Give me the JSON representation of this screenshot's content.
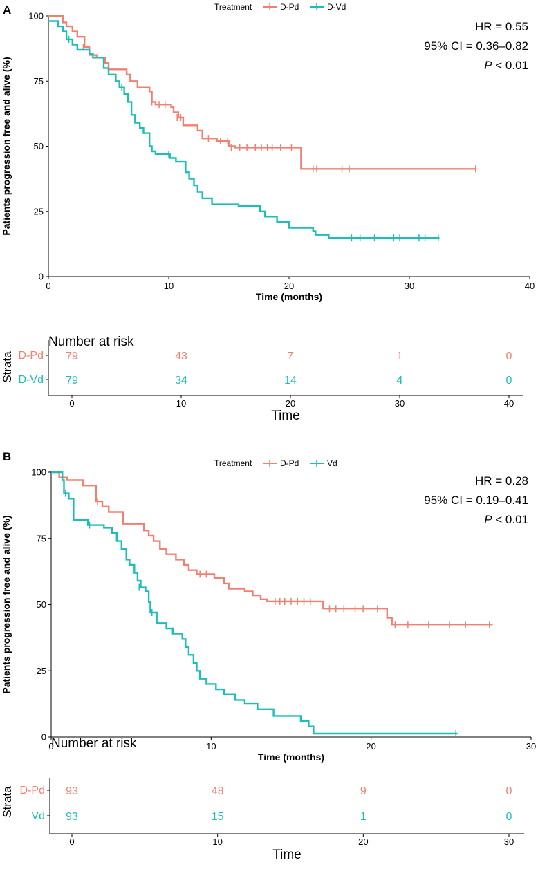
{
  "colors": {
    "dpd": "#f08070",
    "comparator": "#1ebdb8"
  },
  "chart_data": [
    {
      "type": "line",
      "subtype": "kaplan-meier",
      "panel_label": "A",
      "legend": {
        "title": "Treatment",
        "entries": [
          "D-Pd",
          "D-Vd"
        ],
        "placement": "top-center"
      },
      "xlabel": "Time (months)",
      "ylabel": "Patients progression free and alive (%)",
      "xlim": [
        0,
        40
      ],
      "ylim": [
        0,
        100
      ],
      "xticks": [
        "0",
        "10",
        "20",
        "30",
        "40"
      ],
      "yticks": [
        "0",
        "25",
        "50",
        "75",
        "100"
      ],
      "annotations": {
        "hr": "HR = 0.55",
        "ci": "95% CI = 0.36–0.82",
        "p_italic": "P",
        "p_rest": " < 0.01"
      },
      "series": [
        {
          "name": "D-Pd",
          "color": "#f08070",
          "steps": [
            [
              0,
              100
            ],
            [
              1.2,
              97.5
            ],
            [
              1.5,
              96
            ],
            [
              2,
              94
            ],
            [
              2.4,
              92
            ],
            [
              3,
              88
            ],
            [
              3.4,
              85
            ],
            [
              4,
              84
            ],
            [
              4.7,
              82
            ],
            [
              5,
              79.5
            ],
            [
              6.5,
              77.5
            ],
            [
              6.8,
              75
            ],
            [
              7.4,
              72.5
            ],
            [
              8.4,
              71
            ],
            [
              8.6,
              67
            ],
            [
              8.9,
              66
            ],
            [
              10.2,
              65
            ],
            [
              10.4,
              63
            ],
            [
              10.8,
              61
            ],
            [
              11.2,
              58
            ],
            [
              12.4,
              56
            ],
            [
              12.8,
              53
            ],
            [
              14,
              52
            ],
            [
              15,
              50
            ],
            [
              15.5,
              49.5
            ],
            [
              21,
              49.5
            ],
            [
              21,
              41.3
            ],
            [
              35.6,
              41.3
            ]
          ],
          "censors": [
            [
              2.9,
              88
            ],
            [
              8.6,
              67
            ],
            [
              9.2,
              66
            ],
            [
              9.7,
              66
            ],
            [
              10.7,
              61
            ],
            [
              11,
              61
            ],
            [
              13.3,
              53
            ],
            [
              14.3,
              52
            ],
            [
              14.9,
              52
            ],
            [
              15.2,
              49.5
            ],
            [
              15.9,
              49.5
            ],
            [
              16.5,
              49.5
            ],
            [
              17.2,
              49.5
            ],
            [
              17.7,
              49.5
            ],
            [
              18.2,
              49.5
            ],
            [
              18.6,
              49.5
            ],
            [
              19.3,
              49.5
            ],
            [
              20.2,
              49.5
            ],
            [
              22,
              41.3
            ],
            [
              22.3,
              41.3
            ],
            [
              24.4,
              41.3
            ],
            [
              25,
              41.3
            ],
            [
              35.5,
              41.3
            ]
          ]
        },
        {
          "name": "D-Vd",
          "color": "#1ebdb8",
          "steps": [
            [
              0,
              98
            ],
            [
              0.8,
              96
            ],
            [
              1.2,
              94
            ],
            [
              1.5,
              91
            ],
            [
              2,
              89
            ],
            [
              2.4,
              87
            ],
            [
              3.4,
              85.5
            ],
            [
              3.7,
              84
            ],
            [
              4.6,
              80
            ],
            [
              5,
              77.5
            ],
            [
              5.6,
              75
            ],
            [
              5.9,
              72.5
            ],
            [
              6.3,
              70
            ],
            [
              6.6,
              67
            ],
            [
              6.9,
              62
            ],
            [
              7.2,
              59
            ],
            [
              7.6,
              57
            ],
            [
              7.9,
              55
            ],
            [
              8.4,
              50
            ],
            [
              8.6,
              48
            ],
            [
              8.9,
              47
            ],
            [
              10.1,
              45.5
            ],
            [
              10.6,
              44
            ],
            [
              11.4,
              40
            ],
            [
              11.7,
              37.5
            ],
            [
              12.1,
              35
            ],
            [
              12.4,
              32.5
            ],
            [
              12.8,
              30
            ],
            [
              13.6,
              27.7
            ],
            [
              15.8,
              27
            ],
            [
              17.6,
              25
            ],
            [
              18,
              23
            ],
            [
              19,
              21
            ],
            [
              20,
              18.7
            ],
            [
              22,
              17.4
            ],
            [
              22.2,
              16
            ],
            [
              23.3,
              14.8
            ],
            [
              32.5,
              14.8
            ]
          ],
          "censors": [
            [
              1.7,
              91
            ],
            [
              6.1,
              72.5
            ],
            [
              10,
              47
            ],
            [
              25.2,
              14.8
            ],
            [
              25.9,
              14.8
            ],
            [
              27.1,
              14.8
            ],
            [
              28.7,
              14.8
            ],
            [
              29.2,
              14.8
            ],
            [
              30.8,
              14.8
            ],
            [
              31.3,
              14.8
            ],
            [
              32.4,
              14.8
            ]
          ]
        }
      ],
      "risk_table": {
        "title": "Number at risk",
        "strata_label": "Strata",
        "x_label": "Time",
        "xlim": [
          0,
          40
        ],
        "xticks": [
          "0",
          "10",
          "20",
          "30",
          "40"
        ],
        "rows": [
          {
            "label": "D-Pd",
            "values": [
              "79",
              "43",
              "7",
              "1",
              "0"
            ]
          },
          {
            "label": "D-Vd",
            "values": [
              "79",
              "34",
              "14",
              "4",
              "0"
            ]
          }
        ]
      }
    },
    {
      "type": "line",
      "subtype": "kaplan-meier",
      "panel_label": "B",
      "legend": {
        "title": "Treatment",
        "entries": [
          "D-Pd",
          "Vd"
        ],
        "placement": "top-center"
      },
      "xlabel": "Time (months)",
      "ylabel": "Patients progression free and alive (%)",
      "xlim": [
        0,
        30
      ],
      "ylim": [
        0,
        100
      ],
      "xticks": [
        "0",
        "10",
        "20",
        "30"
      ],
      "yticks": [
        "0",
        "25",
        "50",
        "75",
        "100"
      ],
      "annotations": {
        "hr": "HR = 0.28",
        "ci": "95% CI = 0.19–0.41",
        "p_italic": "P",
        "p_rest": " < 0.01"
      },
      "series": [
        {
          "name": "D-Pd",
          "color": "#f08070",
          "steps": [
            [
              0,
              100
            ],
            [
              0.5,
              98
            ],
            [
              1,
              97
            ],
            [
              2,
              95
            ],
            [
              2.8,
              89
            ],
            [
              3.2,
              87
            ],
            [
              3.6,
              85
            ],
            [
              4.5,
              80.5
            ],
            [
              5.8,
              78
            ],
            [
              6.1,
              76
            ],
            [
              6.4,
              74
            ],
            [
              6.8,
              71
            ],
            [
              7.2,
              69
            ],
            [
              7.8,
              67
            ],
            [
              8.3,
              65
            ],
            [
              8.6,
              63
            ],
            [
              9.1,
              61.5
            ],
            [
              10.2,
              60
            ],
            [
              10.8,
              58
            ],
            [
              11.1,
              56
            ],
            [
              12.1,
              55
            ],
            [
              12.6,
              53.5
            ],
            [
              13.1,
              52
            ],
            [
              13.5,
              51.2
            ],
            [
              16.9,
              51.2
            ],
            [
              17,
              48.5
            ],
            [
              21,
              48.5
            ],
            [
              21,
              45
            ],
            [
              21.3,
              42.5
            ],
            [
              27.6,
              42.5
            ]
          ],
          "censors": [
            [
              2.9,
              89
            ],
            [
              9.3,
              61.5
            ],
            [
              9.7,
              61.5
            ],
            [
              14,
              51.2
            ],
            [
              14.3,
              51.2
            ],
            [
              14.6,
              51.2
            ],
            [
              15,
              51.2
            ],
            [
              15.4,
              51.2
            ],
            [
              15.8,
              51.2
            ],
            [
              16.2,
              51.2
            ],
            [
              17.4,
              48.5
            ],
            [
              17.8,
              48.5
            ],
            [
              18.3,
              48.5
            ],
            [
              19,
              48.5
            ],
            [
              19.5,
              48.5
            ],
            [
              20.4,
              48.5
            ],
            [
              21.5,
              42.5
            ],
            [
              22.3,
              42.5
            ],
            [
              23.6,
              42.5
            ],
            [
              24.9,
              42.5
            ],
            [
              25.9,
              42.5
            ],
            [
              27.4,
              42.5
            ]
          ]
        },
        {
          "name": "Vd",
          "color": "#1ebdb8",
          "steps": [
            [
              0,
              100
            ],
            [
              0.7,
              97
            ],
            [
              0.8,
              92
            ],
            [
              1.1,
              90
            ],
            [
              1.4,
              82
            ],
            [
              2.3,
              80
            ],
            [
              3.3,
              79
            ],
            [
              3.8,
              77
            ],
            [
              4.1,
              74
            ],
            [
              4.4,
              71
            ],
            [
              4.7,
              67
            ],
            [
              4.9,
              65
            ],
            [
              5.2,
              62
            ],
            [
              5.4,
              59
            ],
            [
              5.6,
              56.5
            ],
            [
              5.9,
              55
            ],
            [
              6.1,
              51
            ],
            [
              6.2,
              47
            ],
            [
              6.6,
              43
            ],
            [
              7.2,
              41
            ],
            [
              7.6,
              39
            ],
            [
              8.2,
              37
            ],
            [
              8.4,
              34
            ],
            [
              8.6,
              31
            ],
            [
              8.9,
              28
            ],
            [
              9.1,
              25
            ],
            [
              9.3,
              22
            ],
            [
              9.7,
              20
            ],
            [
              10.3,
              18
            ],
            [
              10.8,
              16
            ],
            [
              11.5,
              14
            ],
            [
              12.1,
              12.5
            ],
            [
              12.9,
              10.5
            ],
            [
              13.9,
              8
            ],
            [
              15.6,
              6
            ],
            [
              16.1,
              4
            ],
            [
              16.4,
              1.3
            ],
            [
              25.4,
              1.3
            ]
          ],
          "censors": [
            [
              0.9,
              92
            ],
            [
              2.4,
              80
            ],
            [
              5.5,
              56.5
            ],
            [
              6.3,
              47
            ],
            [
              25.3,
              1.3
            ]
          ]
        }
      ],
      "risk_table": {
        "title": "Number at risk",
        "strata_label": "Strata",
        "x_label": "Time",
        "xlim": [
          0,
          30
        ],
        "xticks": [
          "0",
          "10",
          "20",
          "30"
        ],
        "rows": [
          {
            "label": "D-Pd",
            "values": [
              "93",
              "48",
              "9",
              "0"
            ]
          },
          {
            "label": "Vd",
            "values": [
              "93",
              "15",
              "1",
              "0"
            ]
          }
        ]
      }
    }
  ]
}
